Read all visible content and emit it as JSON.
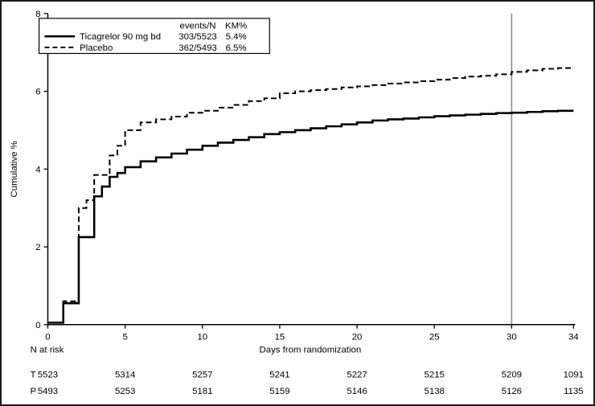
{
  "colors": {
    "line": "#000000",
    "reference_line": "#8a8a8a",
    "background": "#ffffff",
    "border": "#1a1a1a"
  },
  "chart_data": {
    "type": "line",
    "subtype": "kaplan-meier-step",
    "title": "",
    "xlabel": "Days from randomization",
    "ylabel": "Cumulative %",
    "xlim": [
      0,
      34
    ],
    "ylim": [
      0,
      8
    ],
    "xticks": [
      0,
      5,
      10,
      15,
      20,
      25,
      30,
      34
    ],
    "yticks": [
      0,
      2,
      4,
      6,
      8
    ],
    "grid": "off",
    "reference_line_x": 30,
    "legend": {
      "position": "top-left-inside",
      "header_events": "events/N",
      "header_km": "KM%",
      "entries": [
        {
          "label": "Ticagrelor 90 mg bd",
          "events": "303/5523",
          "km": "5.4%",
          "style": "solid"
        },
        {
          "label": "Placebo",
          "events": "362/5493",
          "km": "6.5%",
          "style": "dashed"
        }
      ]
    },
    "series": [
      {
        "name": "Ticagrelor 90 mg bd",
        "style": "solid",
        "points": [
          [
            0,
            0.05
          ],
          [
            1,
            0.55
          ],
          [
            2,
            2.25
          ],
          [
            3,
            3.3
          ],
          [
            3.5,
            3.55
          ],
          [
            4,
            3.8
          ],
          [
            4.5,
            3.9
          ],
          [
            5,
            4.05
          ],
          [
            6,
            4.2
          ],
          [
            7,
            4.3
          ],
          [
            8,
            4.4
          ],
          [
            9,
            4.5
          ],
          [
            10,
            4.6
          ],
          [
            11,
            4.68
          ],
          [
            12,
            4.75
          ],
          [
            13,
            4.82
          ],
          [
            14,
            4.9
          ],
          [
            15,
            4.95
          ],
          [
            16,
            5.0
          ],
          [
            17,
            5.05
          ],
          [
            18,
            5.1
          ],
          [
            19,
            5.15
          ],
          [
            20,
            5.2
          ],
          [
            21,
            5.25
          ],
          [
            22,
            5.28
          ],
          [
            23,
            5.3
          ],
          [
            24,
            5.33
          ],
          [
            25,
            5.36
          ],
          [
            26,
            5.38
          ],
          [
            27,
            5.4
          ],
          [
            28,
            5.42
          ],
          [
            29,
            5.44
          ],
          [
            30,
            5.45
          ],
          [
            31,
            5.47
          ],
          [
            32,
            5.49
          ],
          [
            33,
            5.5
          ],
          [
            34,
            5.5
          ]
        ]
      },
      {
        "name": "Placebo",
        "style": "dashed",
        "points": [
          [
            0,
            0.05
          ],
          [
            1,
            0.6
          ],
          [
            2,
            3.0
          ],
          [
            2.5,
            3.2
          ],
          [
            3,
            3.85
          ],
          [
            4,
            4.35
          ],
          [
            4.5,
            4.6
          ],
          [
            5,
            5.0
          ],
          [
            6,
            5.2
          ],
          [
            7,
            5.28
          ],
          [
            8,
            5.35
          ],
          [
            9,
            5.45
          ],
          [
            10,
            5.5
          ],
          [
            11,
            5.58
          ],
          [
            12,
            5.65
          ],
          [
            13,
            5.75
          ],
          [
            14,
            5.82
          ],
          [
            15,
            5.95
          ],
          [
            16,
            6.0
          ],
          [
            17,
            6.03
          ],
          [
            18,
            6.06
          ],
          [
            19,
            6.1
          ],
          [
            20,
            6.13
          ],
          [
            21,
            6.16
          ],
          [
            22,
            6.2
          ],
          [
            23,
            6.23
          ],
          [
            24,
            6.26
          ],
          [
            25,
            6.3
          ],
          [
            26,
            6.34
          ],
          [
            27,
            6.38
          ],
          [
            28,
            6.4
          ],
          [
            29,
            6.44
          ],
          [
            30,
            6.5
          ],
          [
            31,
            6.54
          ],
          [
            32,
            6.58
          ],
          [
            33,
            6.6
          ],
          [
            34,
            6.62
          ]
        ]
      }
    ],
    "at_risk": {
      "label": "N at risk",
      "days": [
        0,
        5,
        10,
        15,
        20,
        25,
        30,
        34
      ],
      "rows": [
        {
          "label": "T",
          "values": [
            "5523",
            "5314",
            "5257",
            "5241",
            "5227",
            "5215",
            "5209",
            "1091"
          ]
        },
        {
          "label": "P",
          "values": [
            "5493",
            "5253",
            "5181",
            "5159",
            "5146",
            "5138",
            "5126",
            "1135"
          ]
        }
      ]
    }
  }
}
